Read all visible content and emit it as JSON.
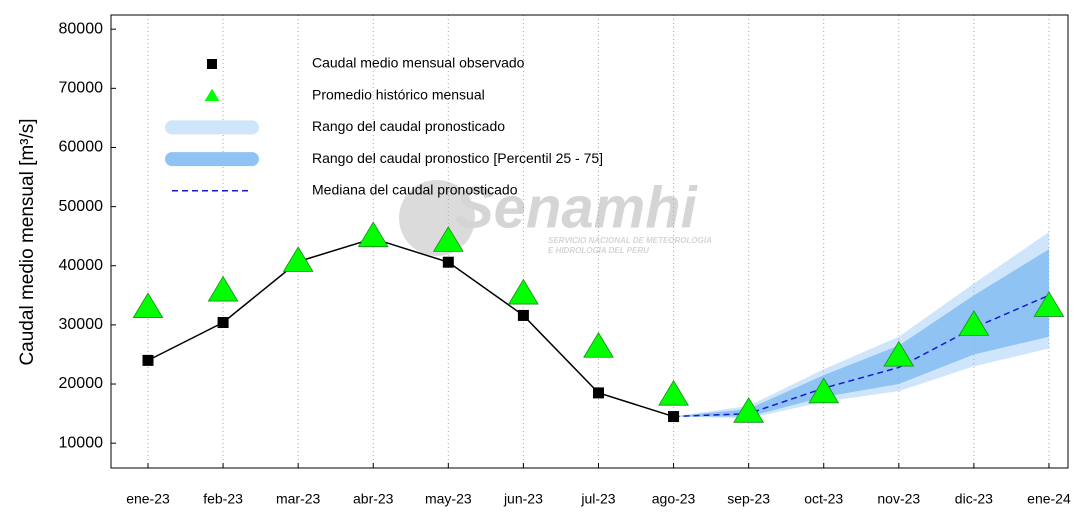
{
  "chart_data": {
    "type": "line",
    "ylabel": "Caudal medio mensual  [m³/s]",
    "watermark": {
      "name": "Senamhi",
      "line1": "SERVICIO NACIONAL DE METEOROLOGIA",
      "line2": "E HIDROLOGIA DEL PERU"
    },
    "categories": [
      "ene-23",
      "feb-23",
      "mar-23",
      "abr-23",
      "may-23",
      "jun-23",
      "jul-23",
      "ago-23",
      "sep-23",
      "oct-23",
      "nov-23",
      "dic-23",
      "ene-24"
    ],
    "ylim": [
      5800,
      82400
    ],
    "yticks": [
      10000,
      20000,
      30000,
      40000,
      50000,
      60000,
      70000,
      80000
    ],
    "grid": true,
    "bands": [
      {
        "name": "Rango del caudal pronosticado",
        "color": "#cfe5fb",
        "low": [
          null,
          null,
          null,
          null,
          null,
          null,
          null,
          14500,
          14200,
          17000,
          18800,
          23000,
          26000
        ],
        "high": [
          null,
          null,
          null,
          null,
          null,
          null,
          null,
          14500,
          16300,
          22500,
          28000,
          37000,
          45700
        ]
      },
      {
        "name": "Rango del caudal pronostico [Percentil 25 - 75]",
        "color": "#8ec3f3",
        "low": [
          null,
          null,
          null,
          null,
          null,
          null,
          null,
          14500,
          14500,
          17800,
          20000,
          25000,
          28000
        ],
        "high": [
          null,
          null,
          null,
          null,
          null,
          null,
          null,
          14500,
          15800,
          21500,
          26500,
          35000,
          42800
        ]
      }
    ],
    "series": [
      {
        "name": "Caudal medio mensual observado",
        "color": "#000000",
        "marker": "square",
        "values": [
          24000,
          30400,
          40700,
          44600,
          40600,
          31600,
          18500,
          14500,
          null,
          null,
          null,
          null,
          null
        ]
      },
      {
        "name": "Promedio histórico mensual",
        "color": "#00ff00",
        "marker": "triangle",
        "values": [
          33000,
          35800,
          40800,
          45000,
          44200,
          35300,
          26300,
          18200,
          15300,
          18600,
          24800,
          30000,
          33200
        ]
      },
      {
        "name": "Mediana del caudal pronosticado",
        "color": "#1a1acc",
        "marker": "dash",
        "values": [
          null,
          null,
          null,
          null,
          null,
          null,
          null,
          14500,
          15000,
          19300,
          22800,
          29500,
          35000
        ]
      }
    ]
  }
}
